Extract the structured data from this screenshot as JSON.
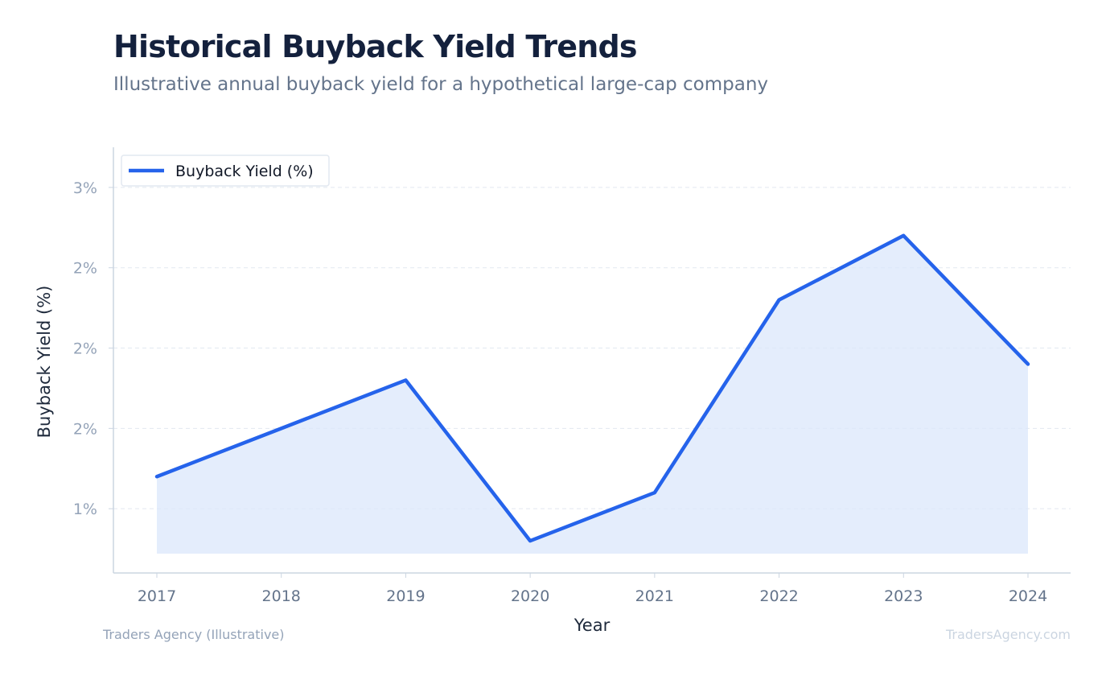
{
  "header": {
    "title": "Historical Buyback Yield Trends",
    "subtitle": "Illustrative annual buyback yield for a hypothetical large-cap company"
  },
  "footer": {
    "source": "Traders Agency (Illustrative)",
    "watermark": "TradersAgency.com"
  },
  "colors": {
    "line": "#2563eb",
    "fill": "#dbe7fb",
    "grid": "#e2e8f0",
    "axis": "#cbd5e1"
  },
  "chart_data": {
    "type": "area",
    "title": "Historical Buyback Yield Trends",
    "subtitle": "Illustrative annual buyback yield for a hypothetical large-cap company",
    "xlabel": "Year",
    "ylabel": "Buyback Yield (%)",
    "categories": [
      "2017",
      "2018",
      "2019",
      "2020",
      "2021",
      "2022",
      "2023",
      "2024"
    ],
    "series": [
      {
        "name": "Buyback Yield (%)",
        "values": [
          1.2,
          1.5,
          1.8,
          0.8,
          1.1,
          2.3,
          2.7,
          1.9
        ]
      }
    ],
    "yticks": [
      {
        "value": 1.0,
        "label": "1%"
      },
      {
        "value": 1.5,
        "label": "2%"
      },
      {
        "value": 2.0,
        "label": "2%"
      },
      {
        "value": 2.5,
        "label": "2%"
      },
      {
        "value": 3.0,
        "label": "3%"
      }
    ],
    "ylim": [
      0.6,
      3.25
    ],
    "grid": true,
    "legend_position": "top-left"
  }
}
